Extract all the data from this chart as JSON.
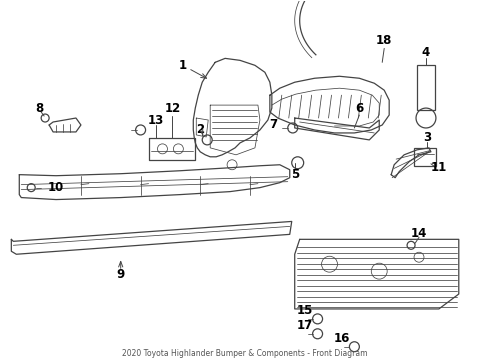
{
  "title": "2020 Toyota Highlander Bumper & Components - Front Diagram",
  "bg_color": "#ffffff",
  "line_color": "#444444",
  "label_color": "#000000",
  "fig_w": 4.9,
  "fig_h": 3.6,
  "dpi": 100
}
